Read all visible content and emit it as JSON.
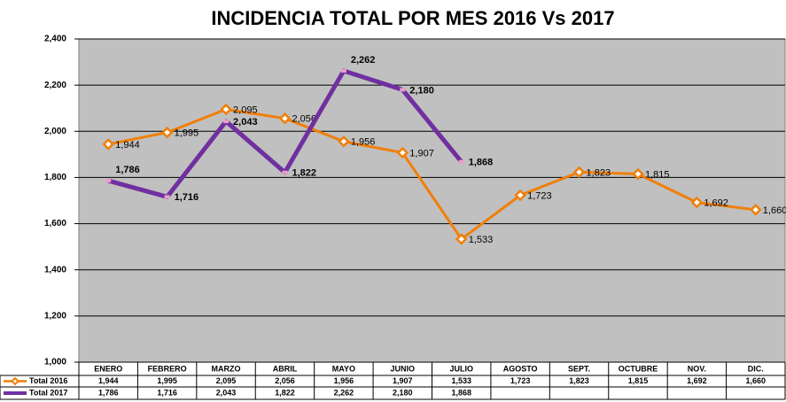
{
  "chart_data": {
    "type": "line",
    "title": "INCIDENCIA TOTAL POR MES  2016 Vs 2017",
    "categories": [
      "ENERO",
      "FEBRERO",
      "MARZO",
      "ABRIL",
      "MAYO",
      "JUNIO",
      "JULIO",
      "AGOSTO",
      "SEPT.",
      "OCTUBRE",
      "NOV.",
      "DIC."
    ],
    "series": [
      {
        "name": "Total 2016",
        "color": "#f07f09",
        "values": [
          1944,
          1995,
          2095,
          2056,
          1956,
          1907,
          1533,
          1723,
          1823,
          1815,
          1692,
          1660
        ],
        "value_labels": [
          "1,944",
          "1,995",
          "2,095",
          "2,056",
          "1,956",
          "1,907",
          "1,533",
          "1,723",
          "1,823",
          "1,815",
          "1,692",
          "1,660"
        ]
      },
      {
        "name": "Total 2017",
        "color": "#7030a0",
        "values": [
          1786,
          1716,
          2043,
          1822,
          2262,
          2180,
          1868,
          null,
          null,
          null,
          null,
          null
        ],
        "value_labels": [
          "1,786",
          "1,716",
          "2,043",
          "1,822",
          "2,262",
          "2,180",
          "1,868",
          null,
          null,
          null,
          null,
          null
        ]
      }
    ],
    "ylim": [
      1000,
      2400
    ],
    "yticks": [
      {
        "value": 1000,
        "label": "1,000"
      },
      {
        "value": 1200,
        "label": "1,200"
      },
      {
        "value": 1400,
        "label": "1,400"
      },
      {
        "value": 1600,
        "label": "1,600"
      },
      {
        "value": 1800,
        "label": "1,800"
      },
      {
        "value": 2000,
        "label": "2,000"
      },
      {
        "value": 2200,
        "label": "2,200"
      },
      {
        "value": 2400,
        "label": "2,400"
      }
    ],
    "grid": true
  }
}
